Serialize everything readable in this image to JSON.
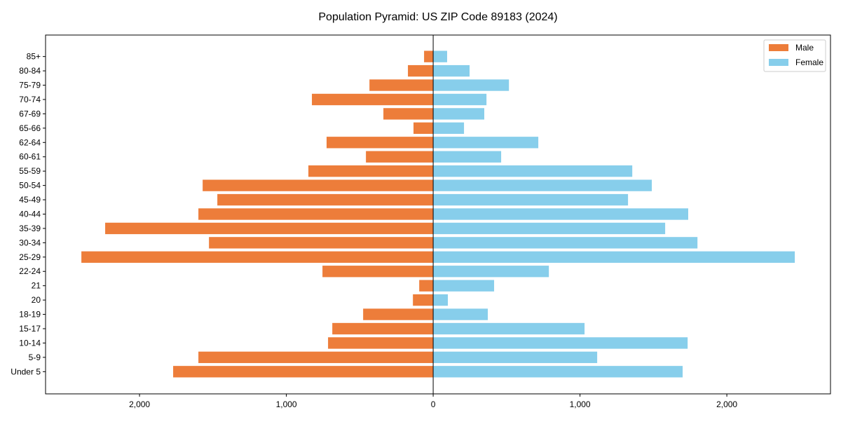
{
  "chart_data": {
    "type": "bar",
    "orientation": "horizontal",
    "title": "Population Pyramid: US ZIP Code 89183 (2024)",
    "xlabel": "",
    "ylabel": "",
    "categories": [
      "Under 5",
      "5-9",
      "10-14",
      "15-17",
      "18-19",
      "20",
      "21",
      "22-24",
      "25-29",
      "30-34",
      "35-39",
      "40-44",
      "45-49",
      "50-54",
      "55-59",
      "60-61",
      "62-64",
      "65-66",
      "67-69",
      "70-74",
      "75-79",
      "80-84",
      "85+"
    ],
    "series": [
      {
        "name": "Male",
        "color": "#ED7D3A",
        "values": [
          1771,
          1599,
          716,
          687,
          477,
          138,
          95,
          754,
          2396,
          1527,
          2234,
          1599,
          1470,
          1570,
          850,
          458,
          726,
          134,
          339,
          826,
          434,
          172,
          62
        ]
      },
      {
        "name": "Female",
        "color": "#87CEEB",
        "values": [
          1699,
          1117,
          1733,
          1031,
          372,
          100,
          415,
          788,
          2463,
          1800,
          1580,
          1737,
          1327,
          1489,
          1356,
          463,
          716,
          210,
          348,
          363,
          516,
          248,
          95
        ]
      }
    ],
    "xlim": [
      -2640,
      2706
    ],
    "xticks": [
      -2000,
      -1000,
      0,
      1000,
      2000
    ],
    "xtick_labels": [
      "2,000",
      "1,000",
      "0",
      "1,000",
      "2,000"
    ],
    "legend": {
      "placement": "top-right",
      "entries": [
        "Male",
        "Female"
      ]
    },
    "grid": false
  }
}
